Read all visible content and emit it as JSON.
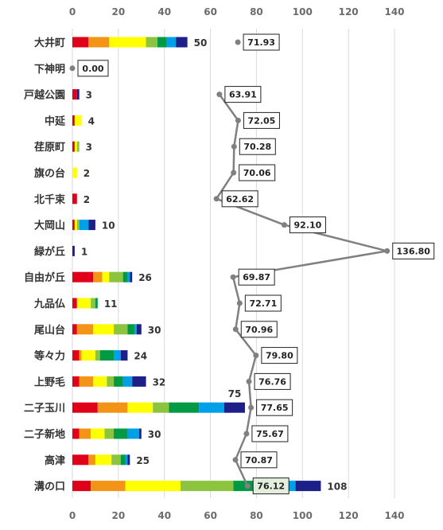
{
  "chart_data": {
    "type": "bar",
    "orientation": "horizontal",
    "stacked": true,
    "xlim": [
      0,
      140
    ],
    "x_ticks": [
      "0",
      "20",
      "40",
      "60",
      "80",
      "100",
      "120",
      "140"
    ],
    "categories": [
      "大井町",
      "下神明",
      "戸越公園",
      "中延",
      "荏原町",
      "旗の台",
      "北千束",
      "大岡山",
      "緑が丘",
      "自由が丘",
      "九品仏",
      "尾山台",
      "等々力",
      "上野毛",
      "二子玉川",
      "二子新地",
      "高津",
      "溝の口"
    ],
    "totals": [
      50,
      0,
      3,
      4,
      3,
      2,
      2,
      10,
      1,
      26,
      11,
      30,
      24,
      32,
      75,
      30,
      25,
      108
    ],
    "total_labels": [
      "50",
      "",
      "3",
      "4",
      "3",
      "2",
      "2",
      "10",
      "1",
      "26",
      "11",
      "30",
      "24",
      "32",
      "75",
      "30",
      "25",
      "108"
    ],
    "segment_colors": [
      "#e0001a",
      "#f39416",
      "#ffff00",
      "#8cc43f",
      "#009944",
      "#00a0e9",
      "#1d2088"
    ],
    "segments": [
      [
        7,
        9,
        16,
        5,
        4,
        4,
        5
      ],
      [
        0,
        0,
        0,
        0,
        0,
        0,
        0
      ],
      [
        2,
        0,
        0,
        0,
        0,
        0,
        1
      ],
      [
        1,
        0,
        3,
        0,
        0,
        0,
        0
      ],
      [
        1,
        0,
        1,
        1,
        0,
        0,
        0
      ],
      [
        0,
        0,
        2,
        0,
        0,
        0,
        0
      ],
      [
        2,
        0,
        0,
        0,
        0,
        0,
        0
      ],
      [
        1,
        0,
        1,
        1,
        0,
        4,
        3
      ],
      [
        0,
        0,
        0,
        0,
        0,
        0,
        1
      ],
      [
        9,
        4,
        3,
        6,
        2,
        1,
        1
      ],
      [
        2,
        0,
        6,
        2,
        1,
        0,
        0
      ],
      [
        2,
        7,
        9,
        6,
        3,
        1,
        2
      ],
      [
        3,
        1,
        6,
        2,
        6,
        3,
        3
      ],
      [
        3,
        6,
        6,
        3,
        4,
        4,
        6
      ],
      [
        11,
        13,
        11,
        7,
        13,
        11,
        9
      ],
      [
        3,
        5,
        6,
        4,
        6,
        5,
        1
      ],
      [
        7,
        3,
        7,
        4,
        2,
        1,
        1
      ],
      [
        8,
        15,
        24,
        23,
        14,
        13,
        11
      ]
    ],
    "line_series": {
      "values": [
        71.93,
        0.0,
        63.91,
        72.05,
        70.28,
        70.06,
        62.62,
        92.1,
        136.8,
        69.87,
        72.71,
        70.96,
        79.8,
        76.76,
        77.65,
        75.67,
        70.87,
        76.12
      ],
      "labels": [
        "71.93",
        "0.00",
        "63.91",
        "72.05",
        "70.28",
        "70.06",
        "62.62",
        "92.10",
        "136.80",
        "69.87",
        "72.71",
        "70.96",
        "79.80",
        "76.76",
        "77.65",
        "75.67",
        "70.87",
        "76.12"
      ],
      "color": "#808080"
    },
    "grid": true
  }
}
